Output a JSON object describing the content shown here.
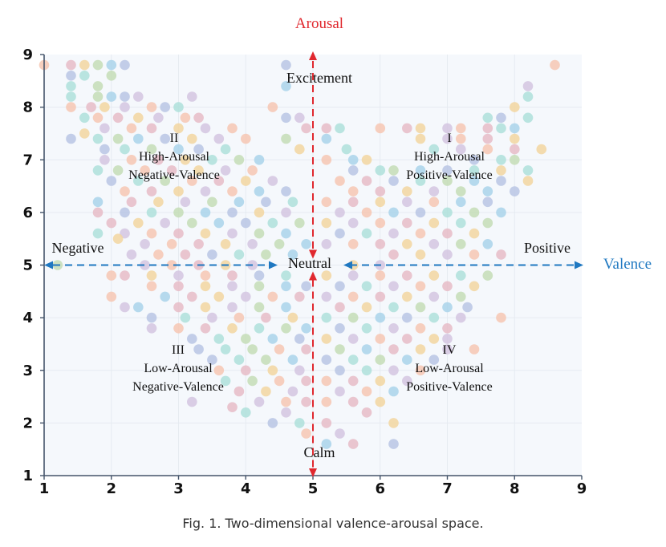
{
  "chart_data": {
    "type": "scatter",
    "x_range": [
      1,
      9
    ],
    "y_range": [
      1,
      9
    ],
    "x_ticks": [
      "1",
      "2",
      "3",
      "4",
      "5",
      "6",
      "7",
      "8",
      "9"
    ],
    "y_ticks": [
      "1",
      "2",
      "3",
      "4",
      "5",
      "6",
      "7",
      "8",
      "9"
    ],
    "grid": true,
    "axis_titles": {
      "x": "Valence",
      "y": "Arousal"
    },
    "pole_labels": {
      "top": "Excitement",
      "bottom": "Calm",
      "left": "Negative",
      "right": "Positive",
      "center": "Neutral"
    },
    "quadrants": [
      {
        "id": "q1",
        "numeral": "I",
        "line1": "High-Arousal",
        "line2": "Positive-Valence"
      },
      {
        "id": "q2",
        "numeral": "II",
        "line1": "High-Arousal",
        "line2": "Negative-Valence"
      },
      {
        "id": "q3",
        "numeral": "III",
        "line1": "Low-Arousal",
        "line2": "Negative-Valence"
      },
      {
        "id": "q4",
        "numeral": "IV",
        "line1": "Low-Arousal",
        "line2": "Positive-Valence"
      }
    ],
    "point_colors": [
      "#a9d3ea",
      "#f6c7b3",
      "#c4ddb6",
      "#d3c6e0",
      "#aee0da",
      "#f2d6a0",
      "#b9c6e4",
      "#e6bcc7"
    ],
    "points": [
      [
        1.0,
        8.8
      ],
      [
        1.4,
        8.8
      ],
      [
        1.6,
        8.8
      ],
      [
        1.8,
        8.8
      ],
      [
        2.0,
        8.8
      ],
      [
        2.2,
        8.8
      ],
      [
        1.4,
        8.6
      ],
      [
        1.6,
        8.6
      ],
      [
        2.0,
        8.6
      ],
      [
        1.4,
        8.4
      ],
      [
        1.8,
        8.4
      ],
      [
        1.4,
        8.2
      ],
      [
        1.8,
        8.2
      ],
      [
        2.0,
        8.2
      ],
      [
        2.2,
        8.2
      ],
      [
        2.4,
        8.2
      ],
      [
        3.2,
        8.2
      ],
      [
        1.4,
        8.0
      ],
      [
        1.7,
        8.0
      ],
      [
        1.9,
        8.0
      ],
      [
        2.2,
        8.0
      ],
      [
        2.6,
        8.0
      ],
      [
        2.8,
        8.0
      ],
      [
        3.0,
        8.0
      ],
      [
        1.6,
        7.8
      ],
      [
        1.8,
        7.8
      ],
      [
        2.1,
        7.8
      ],
      [
        2.4,
        7.8
      ],
      [
        2.7,
        7.8
      ],
      [
        3.1,
        7.8
      ],
      [
        3.3,
        7.8
      ],
      [
        1.6,
        7.5
      ],
      [
        1.9,
        7.6
      ],
      [
        2.3,
        7.6
      ],
      [
        2.6,
        7.6
      ],
      [
        3.0,
        7.6
      ],
      [
        3.4,
        7.6
      ],
      [
        3.8,
        7.6
      ],
      [
        1.4,
        7.4
      ],
      [
        1.8,
        7.4
      ],
      [
        2.1,
        7.4
      ],
      [
        2.4,
        7.4
      ],
      [
        2.8,
        7.4
      ],
      [
        3.2,
        7.4
      ],
      [
        3.6,
        7.4
      ],
      [
        4.0,
        7.4
      ],
      [
        1.9,
        7.2
      ],
      [
        2.2,
        7.2
      ],
      [
        2.6,
        7.2
      ],
      [
        3.0,
        7.2
      ],
      [
        3.3,
        7.2
      ],
      [
        3.7,
        7.2
      ],
      [
        1.9,
        7.0
      ],
      [
        2.3,
        7.0
      ],
      [
        2.7,
        7.0
      ],
      [
        3.1,
        7.0
      ],
      [
        3.5,
        7.0
      ],
      [
        3.9,
        7.0
      ],
      [
        4.2,
        7.0
      ],
      [
        1.8,
        6.8
      ],
      [
        2.1,
        6.8
      ],
      [
        2.5,
        6.8
      ],
      [
        2.9,
        6.8
      ],
      [
        3.3,
        6.8
      ],
      [
        3.7,
        6.8
      ],
      [
        4.1,
        6.8
      ],
      [
        2.0,
        6.6
      ],
      [
        2.4,
        6.6
      ],
      [
        2.8,
        6.6
      ],
      [
        3.2,
        6.6
      ],
      [
        3.6,
        6.6
      ],
      [
        4.0,
        6.6
      ],
      [
        4.4,
        6.6
      ],
      [
        2.2,
        6.4
      ],
      [
        2.6,
        6.4
      ],
      [
        3.0,
        6.4
      ],
      [
        3.4,
        6.4
      ],
      [
        3.8,
        6.4
      ],
      [
        4.2,
        6.4
      ],
      [
        4.6,
        6.4
      ],
      [
        1.8,
        6.2
      ],
      [
        2.3,
        6.2
      ],
      [
        2.7,
        6.2
      ],
      [
        3.1,
        6.2
      ],
      [
        3.5,
        6.2
      ],
      [
        3.9,
        6.2
      ],
      [
        4.3,
        6.2
      ],
      [
        4.7,
        6.2
      ],
      [
        1.8,
        6.0
      ],
      [
        2.2,
        6.0
      ],
      [
        2.6,
        6.0
      ],
      [
        3.0,
        6.0
      ],
      [
        3.4,
        6.0
      ],
      [
        3.8,
        6.0
      ],
      [
        4.2,
        6.0
      ],
      [
        4.6,
        6.0
      ],
      [
        2.0,
        5.8
      ],
      [
        2.4,
        5.8
      ],
      [
        2.8,
        5.8
      ],
      [
        3.2,
        5.8
      ],
      [
        3.6,
        5.8
      ],
      [
        4.0,
        5.8
      ],
      [
        4.4,
        5.8
      ],
      [
        4.8,
        5.8
      ],
      [
        1.8,
        5.6
      ],
      [
        2.2,
        5.6
      ],
      [
        2.6,
        5.6
      ],
      [
        3.0,
        5.6
      ],
      [
        3.4,
        5.6
      ],
      [
        3.8,
        5.6
      ],
      [
        4.2,
        5.6
      ],
      [
        4.6,
        5.6
      ],
      [
        2.1,
        5.5
      ],
      [
        2.5,
        5.4
      ],
      [
        2.9,
        5.4
      ],
      [
        3.3,
        5.4
      ],
      [
        3.7,
        5.4
      ],
      [
        4.1,
        5.4
      ],
      [
        4.5,
        5.4
      ],
      [
        4.9,
        5.4
      ],
      [
        2.3,
        5.2
      ],
      [
        2.7,
        5.2
      ],
      [
        3.1,
        5.2
      ],
      [
        3.5,
        5.2
      ],
      [
        3.9,
        5.2
      ],
      [
        4.3,
        5.2
      ],
      [
        4.7,
        5.2
      ],
      [
        1.2,
        5.0
      ],
      [
        2.5,
        5.0
      ],
      [
        2.9,
        5.0
      ],
      [
        3.3,
        5.0
      ],
      [
        3.7,
        5.0
      ],
      [
        4.1,
        5.0
      ],
      [
        2.0,
        4.8
      ],
      [
        2.2,
        4.8
      ],
      [
        2.6,
        4.8
      ],
      [
        3.0,
        4.8
      ],
      [
        3.4,
        4.8
      ],
      [
        3.8,
        4.8
      ],
      [
        4.2,
        4.8
      ],
      [
        4.6,
        4.8
      ],
      [
        2.6,
        4.6
      ],
      [
        3.0,
        4.6
      ],
      [
        3.4,
        4.6
      ],
      [
        3.8,
        4.6
      ],
      [
        4.2,
        4.6
      ],
      [
        4.6,
        4.6
      ],
      [
        4.9,
        4.6
      ],
      [
        2.0,
        4.4
      ],
      [
        2.8,
        4.4
      ],
      [
        3.2,
        4.4
      ],
      [
        3.6,
        4.4
      ],
      [
        4.0,
        4.4
      ],
      [
        4.4,
        4.4
      ],
      [
        4.8,
        4.4
      ],
      [
        2.2,
        4.2
      ],
      [
        2.4,
        4.2
      ],
      [
        3.0,
        4.2
      ],
      [
        3.4,
        4.2
      ],
      [
        3.8,
        4.2
      ],
      [
        4.2,
        4.2
      ],
      [
        4.6,
        4.2
      ],
      [
        2.6,
        4.0
      ],
      [
        3.1,
        4.0
      ],
      [
        3.5,
        4.0
      ],
      [
        3.9,
        4.0
      ],
      [
        4.3,
        4.0
      ],
      [
        4.7,
        4.0
      ],
      [
        2.6,
        3.8
      ],
      [
        3.0,
        3.8
      ],
      [
        3.4,
        3.8
      ],
      [
        3.8,
        3.8
      ],
      [
        4.2,
        3.8
      ],
      [
        4.6,
        3.8
      ],
      [
        4.9,
        3.8
      ],
      [
        3.2,
        3.6
      ],
      [
        3.6,
        3.6
      ],
      [
        4.0,
        3.6
      ],
      [
        4.4,
        3.6
      ],
      [
        4.8,
        3.6
      ],
      [
        3.3,
        3.4
      ],
      [
        3.7,
        3.4
      ],
      [
        4.1,
        3.4
      ],
      [
        4.5,
        3.4
      ],
      [
        4.9,
        3.4
      ],
      [
        3.5,
        3.2
      ],
      [
        3.9,
        3.2
      ],
      [
        4.3,
        3.2
      ],
      [
        4.7,
        3.2
      ],
      [
        3.6,
        3.0
      ],
      [
        4.0,
        3.0
      ],
      [
        4.4,
        3.0
      ],
      [
        4.8,
        3.0
      ],
      [
        3.7,
        2.8
      ],
      [
        4.1,
        2.8
      ],
      [
        4.5,
        2.8
      ],
      [
        4.9,
        2.8
      ],
      [
        3.9,
        2.6
      ],
      [
        4.3,
        2.6
      ],
      [
        4.7,
        2.6
      ],
      [
        3.2,
        2.4
      ],
      [
        4.2,
        2.4
      ],
      [
        4.6,
        2.4
      ],
      [
        4.9,
        2.4
      ],
      [
        3.8,
        2.3
      ],
      [
        4.0,
        2.2
      ],
      [
        4.6,
        2.2
      ],
      [
        4.4,
        2.0
      ],
      [
        4.8,
        2.0
      ],
      [
        4.9,
        1.8
      ],
      [
        4.6,
        8.8
      ],
      [
        4.6,
        8.4
      ],
      [
        4.4,
        8.0
      ],
      [
        4.6,
        7.8
      ],
      [
        4.8,
        7.8
      ],
      [
        4.9,
        7.6
      ],
      [
        4.6,
        7.4
      ],
      [
        4.8,
        7.2
      ],
      [
        5.2,
        7.6
      ],
      [
        5.4,
        7.6
      ],
      [
        5.2,
        7.4
      ],
      [
        5.5,
        7.2
      ],
      [
        5.6,
        7.0
      ],
      [
        5.8,
        7.0
      ],
      [
        5.2,
        7.0
      ],
      [
        5.6,
        6.8
      ],
      [
        6.0,
        6.8
      ],
      [
        6.2,
        6.8
      ],
      [
        6.6,
        6.8
      ],
      [
        7.0,
        6.8
      ],
      [
        7.4,
        6.8
      ],
      [
        5.4,
        6.6
      ],
      [
        5.8,
        6.6
      ],
      [
        6.2,
        6.6
      ],
      [
        6.6,
        6.6
      ],
      [
        7.0,
        6.6
      ],
      [
        7.4,
        6.6
      ],
      [
        7.8,
        6.6
      ],
      [
        8.2,
        6.6
      ],
      [
        5.6,
        6.4
      ],
      [
        6.0,
        6.4
      ],
      [
        6.4,
        6.4
      ],
      [
        6.8,
        6.4
      ],
      [
        7.2,
        6.4
      ],
      [
        7.6,
        6.4
      ],
      [
        8.0,
        6.4
      ],
      [
        5.2,
        6.2
      ],
      [
        5.6,
        6.2
      ],
      [
        6.0,
        6.2
      ],
      [
        6.4,
        6.2
      ],
      [
        6.8,
        6.2
      ],
      [
        7.2,
        6.2
      ],
      [
        7.6,
        6.2
      ],
      [
        5.4,
        6.0
      ],
      [
        5.8,
        6.0
      ],
      [
        6.2,
        6.0
      ],
      [
        6.6,
        6.0
      ],
      [
        7.0,
        6.0
      ],
      [
        7.4,
        6.0
      ],
      [
        7.8,
        6.0
      ],
      [
        5.2,
        5.8
      ],
      [
        5.6,
        5.8
      ],
      [
        6.0,
        5.8
      ],
      [
        6.4,
        5.8
      ],
      [
        6.8,
        5.8
      ],
      [
        7.2,
        5.8
      ],
      [
        7.6,
        5.8
      ],
      [
        5.4,
        5.6
      ],
      [
        5.8,
        5.6
      ],
      [
        6.2,
        5.6
      ],
      [
        6.6,
        5.6
      ],
      [
        7.0,
        5.6
      ],
      [
        7.4,
        5.6
      ],
      [
        5.2,
        5.4
      ],
      [
        5.6,
        5.4
      ],
      [
        6.0,
        5.4
      ],
      [
        6.4,
        5.4
      ],
      [
        6.8,
        5.4
      ],
      [
        7.2,
        5.4
      ],
      [
        7.6,
        5.4
      ],
      [
        6.2,
        5.2
      ],
      [
        6.6,
        5.2
      ],
      [
        7.0,
        5.2
      ],
      [
        7.4,
        5.2
      ],
      [
        7.8,
        5.2
      ],
      [
        5.6,
        5.0
      ],
      [
        6.0,
        5.0
      ],
      [
        5.2,
        4.8
      ],
      [
        5.6,
        4.8
      ],
      [
        6.0,
        4.8
      ],
      [
        6.4,
        4.8
      ],
      [
        6.8,
        4.8
      ],
      [
        7.2,
        4.8
      ],
      [
        7.6,
        4.8
      ],
      [
        5.4,
        4.6
      ],
      [
        5.8,
        4.6
      ],
      [
        6.2,
        4.6
      ],
      [
        6.6,
        4.6
      ],
      [
        7.0,
        4.6
      ],
      [
        7.4,
        4.6
      ],
      [
        5.2,
        4.4
      ],
      [
        5.6,
        4.4
      ],
      [
        6.0,
        4.4
      ],
      [
        6.4,
        4.4
      ],
      [
        6.8,
        4.4
      ],
      [
        7.2,
        4.4
      ],
      [
        5.4,
        4.2
      ],
      [
        5.8,
        4.2
      ],
      [
        6.2,
        4.2
      ],
      [
        6.6,
        4.2
      ],
      [
        7.0,
        4.2
      ],
      [
        7.3,
        4.2
      ],
      [
        5.2,
        4.0
      ],
      [
        5.6,
        4.0
      ],
      [
        6.0,
        4.0
      ],
      [
        6.4,
        4.0
      ],
      [
        6.8,
        4.0
      ],
      [
        7.2,
        4.0
      ],
      [
        7.8,
        4.0
      ],
      [
        5.4,
        3.8
      ],
      [
        5.8,
        3.8
      ],
      [
        6.2,
        3.8
      ],
      [
        6.6,
        3.8
      ],
      [
        7.0,
        3.8
      ],
      [
        5.2,
        3.6
      ],
      [
        5.6,
        3.6
      ],
      [
        6.0,
        3.6
      ],
      [
        6.4,
        3.6
      ],
      [
        6.8,
        3.6
      ],
      [
        7.0,
        3.6
      ],
      [
        5.4,
        3.4
      ],
      [
        5.8,
        3.4
      ],
      [
        6.2,
        3.4
      ],
      [
        6.6,
        3.4
      ],
      [
        7.0,
        3.4
      ],
      [
        7.4,
        3.4
      ],
      [
        5.2,
        3.2
      ],
      [
        5.6,
        3.2
      ],
      [
        6.0,
        3.2
      ],
      [
        6.4,
        3.2
      ],
      [
        6.8,
        3.2
      ],
      [
        5.4,
        3.0
      ],
      [
        5.8,
        3.0
      ],
      [
        6.2,
        3.0
      ],
      [
        6.6,
        3.0
      ],
      [
        5.2,
        2.8
      ],
      [
        5.6,
        2.8
      ],
      [
        6.0,
        2.8
      ],
      [
        6.4,
        2.8
      ],
      [
        5.4,
        2.6
      ],
      [
        5.8,
        2.6
      ],
      [
        6.2,
        2.6
      ],
      [
        5.2,
        2.4
      ],
      [
        5.6,
        2.4
      ],
      [
        6.0,
        2.4
      ],
      [
        5.8,
        2.2
      ],
      [
        6.2,
        2.0
      ],
      [
        5.2,
        2.0
      ],
      [
        5.4,
        1.8
      ],
      [
        5.6,
        1.6
      ],
      [
        6.2,
        1.6
      ],
      [
        5.2,
        1.6
      ],
      [
        6.0,
        7.6
      ],
      [
        6.4,
        7.6
      ],
      [
        6.6,
        7.6
      ],
      [
        7.0,
        7.6
      ],
      [
        7.2,
        7.6
      ],
      [
        7.6,
        7.6
      ],
      [
        7.8,
        7.6
      ],
      [
        6.6,
        7.4
      ],
      [
        7.0,
        7.4
      ],
      [
        7.2,
        7.4
      ],
      [
        7.6,
        7.4
      ],
      [
        8.0,
        7.4
      ],
      [
        6.8,
        7.2
      ],
      [
        7.2,
        7.2
      ],
      [
        7.6,
        7.2
      ],
      [
        8.0,
        7.2
      ],
      [
        8.4,
        7.2
      ],
      [
        7.4,
        7.0
      ],
      [
        7.8,
        7.0
      ],
      [
        8.0,
        7.0
      ],
      [
        7.8,
        6.8
      ],
      [
        8.2,
        6.8
      ],
      [
        7.8,
        7.8
      ],
      [
        8.0,
        8.0
      ],
      [
        8.2,
        8.2
      ],
      [
        8.2,
        8.4
      ],
      [
        8.2,
        7.8
      ],
      [
        8.6,
        8.8
      ],
      [
        7.6,
        7.8
      ],
      [
        8.0,
        7.6
      ]
    ]
  },
  "caption": "Fig. 1.  Two-dimensional valence-arousal space."
}
